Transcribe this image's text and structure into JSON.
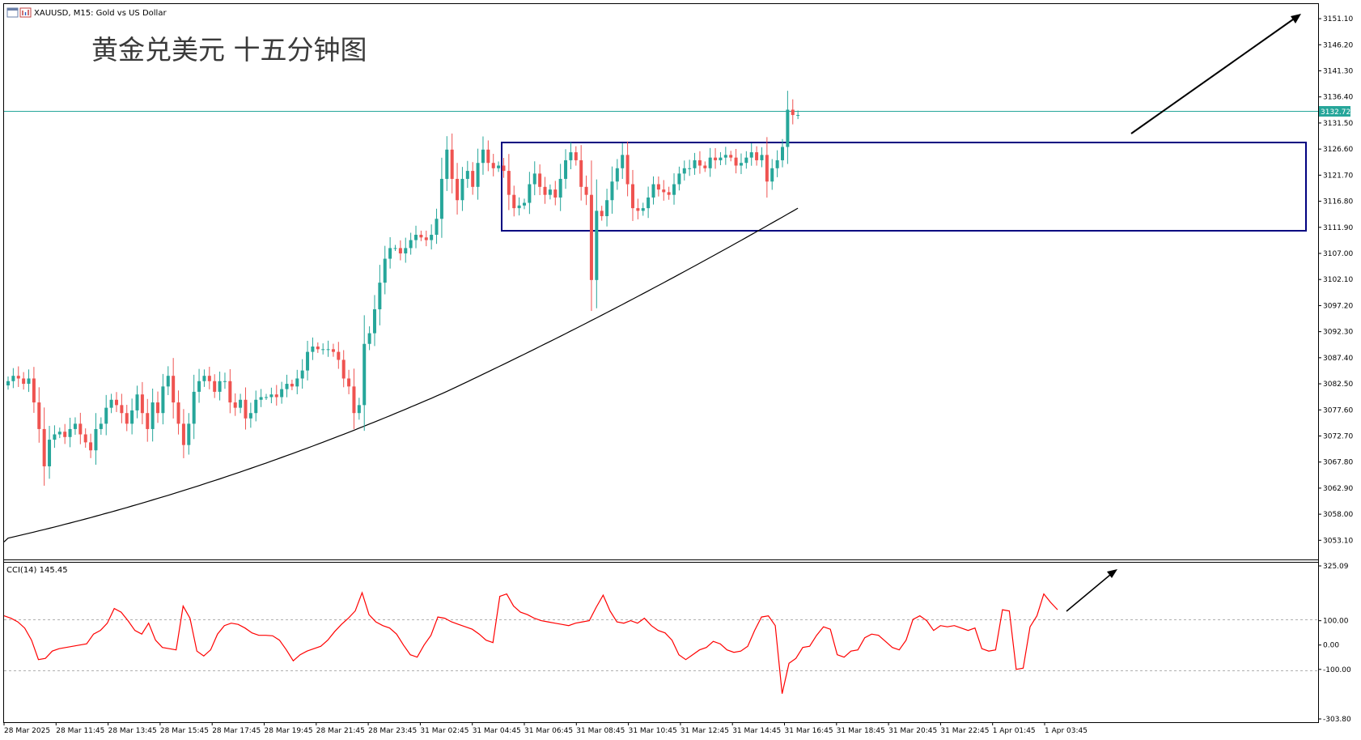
{
  "header": {
    "symbol_line": "XAUUSD, M15:  Gold vs US Dollar"
  },
  "overlay_title": "黄金兑美元 十五分钟图",
  "current_price_label": "3132.72",
  "indicator": {
    "label": "CCI(14) 145.45",
    "levels": [
      100,
      -100
    ],
    "ticks": [
      "325.09",
      "100.00",
      "0.00",
      "-100.00",
      "-303.80"
    ]
  },
  "colors": {
    "bull": "#26a69a",
    "bear": "#ef5350",
    "ma": "#000000",
    "cci": "#ff0000",
    "box": "#000080",
    "price_line": "#26a69a",
    "grid": "#c0c0c0"
  },
  "icons": [
    "window-icon",
    "chart-icon"
  ],
  "chart_data": {
    "type": "candlestick",
    "title": "黄金兑美元 十五分钟图",
    "symbol": "XAUUSD",
    "timeframe": "M15",
    "ylim": [
      3049.5,
      3154.0
    ],
    "y_ticks": [
      "3151.10",
      "3146.20",
      "3141.30",
      "3136.40",
      "3131.50",
      "3126.60",
      "3121.70",
      "3116.80",
      "3111.90",
      "3107.00",
      "3102.10",
      "3097.20",
      "3092.30",
      "3087.40",
      "3082.50",
      "3077.60",
      "3072.70",
      "3067.80",
      "3062.90",
      "3058.00",
      "3053.10"
    ],
    "x_labels": [
      "28 Mar 2025",
      "28 Mar 11:45",
      "28 Mar 13:45",
      "28 Mar 15:45",
      "28 Mar 17:45",
      "28 Mar 19:45",
      "28 Mar 21:45",
      "28 Mar 23:45",
      "31 Mar 02:45",
      "31 Mar 04:45",
      "31 Mar 06:45",
      "31 Mar 08:45",
      "31 Mar 10:45",
      "31 Mar 12:45",
      "31 Mar 14:45",
      "31 Mar 16:45",
      "31 Mar 18:45",
      "31 Mar 20:45",
      "31 Mar 22:45",
      "1 Apr 01:45",
      "1 Apr 03:45"
    ],
    "close": [
      3083.0,
      3084.0,
      3083.5,
      3082.5,
      3083.5,
      3079.0,
      3074.0,
      3067.0,
      3072.0,
      3073.0,
      3073.5,
      3072.5,
      3074.0,
      3075.0,
      3073.0,
      3071.5,
      3070.0,
      3074.0,
      3075.0,
      3078.0,
      3079.5,
      3078.5,
      3077.0,
      3075.0,
      3077.5,
      3080.5,
      3077.0,
      3074.0,
      3079.0,
      3077.0,
      3082.0,
      3084.0,
      3079.0,
      3075.0,
      3071.0,
      3075.0,
      3081.0,
      3083.0,
      3084.0,
      3083.0,
      3081.0,
      3083.0,
      3083.0,
      3079.0,
      3078.0,
      3079.5,
      3076.0,
      3077.0,
      3079.5,
      3080.0,
      3080.0,
      3080.5,
      3080.0,
      3081.5,
      3082.5,
      3082.0,
      3083.5,
      3085.0,
      3088.5,
      3089.5,
      3089.0,
      3089.0,
      3089.0,
      3088.5,
      3087.0,
      3083.5,
      3082.0,
      3077.0,
      3078.5,
      3090.0,
      3092.0,
      3096.5,
      3101.5,
      3106.0,
      3108.0,
      3108.0,
      3107.0,
      3108.0,
      3109.5,
      3110.5,
      3110.0,
      3109.5,
      3110.5,
      3113.5,
      3121.0,
      3126.5,
      3121.0,
      3117.0,
      3121.0,
      3122.5,
      3119.5,
      3124.0,
      3126.5,
      3124.0,
      3123.0,
      3123.5,
      3122.5,
      3118.0,
      3115.5,
      3116.0,
      3116.5,
      3120.0,
      3122.0,
      3119.5,
      3118.0,
      3119.0,
      3117.5,
      3121.0,
      3124.5,
      3126.0,
      3124.5,
      3119.5,
      3118.0,
      3102.0,
      3115.0,
      3114.0,
      3117.0,
      3120.5,
      3123.0,
      3125.5,
      3120.0,
      3115.5,
      3115.0,
      3115.5,
      3117.5,
      3120.0,
      3119.0,
      3118.5,
      3118.0,
      3120.0,
      3122.0,
      3123.0,
      3123.0,
      3124.5,
      3123.5,
      3123.0,
      3125.0,
      3124.5,
      3125.0,
      3125.5,
      3125.0,
      3123.5,
      3124.0,
      3125.0,
      3126.0,
      3124.5,
      3125.5,
      3120.5,
      3123.0,
      3124.5,
      3127.0,
      3134.0,
      3133.0,
      3133.0
    ],
    "ma_label": "Moving Average (dark line)",
    "cci": [
      120,
      110,
      95,
      70,
      20,
      -60,
      -55,
      -25,
      -15,
      -10,
      -5,
      0,
      5,
      45,
      60,
      90,
      150,
      135,
      100,
      60,
      45,
      90,
      20,
      -10,
      -15,
      -20,
      160,
      110,
      -25,
      -45,
      -20,
      45,
      80,
      90,
      85,
      70,
      50,
      40,
      40,
      38,
      20,
      -20,
      -65,
      -40,
      -25,
      -15,
      -5,
      20,
      55,
      85,
      110,
      140,
      215,
      125,
      95,
      80,
      70,
      45,
      0,
      -40,
      -50,
      0,
      40,
      115,
      110,
      95,
      85,
      75,
      65,
      45,
      20,
      10,
      200,
      210,
      160,
      135,
      125,
      110,
      100,
      95,
      90,
      85,
      80,
      90,
      95,
      100,
      155,
      205,
      140,
      95,
      90,
      100,
      90,
      110,
      80,
      60,
      50,
      20,
      -40,
      -60,
      -40,
      -20,
      -10,
      15,
      5,
      -20,
      -30,
      -25,
      -5,
      60,
      115,
      120,
      80,
      -200,
      -75,
      -55,
      -10,
      -5,
      40,
      75,
      65,
      -40,
      -50,
      -25,
      -20,
      30,
      45,
      40,
      15,
      -10,
      -20,
      20,
      105,
      120,
      100,
      60,
      80,
      75,
      80,
      70,
      60,
      70,
      -15,
      -25,
      -20,
      145,
      140,
      -100,
      -95,
      75,
      120,
      210,
      175,
      145
    ]
  }
}
